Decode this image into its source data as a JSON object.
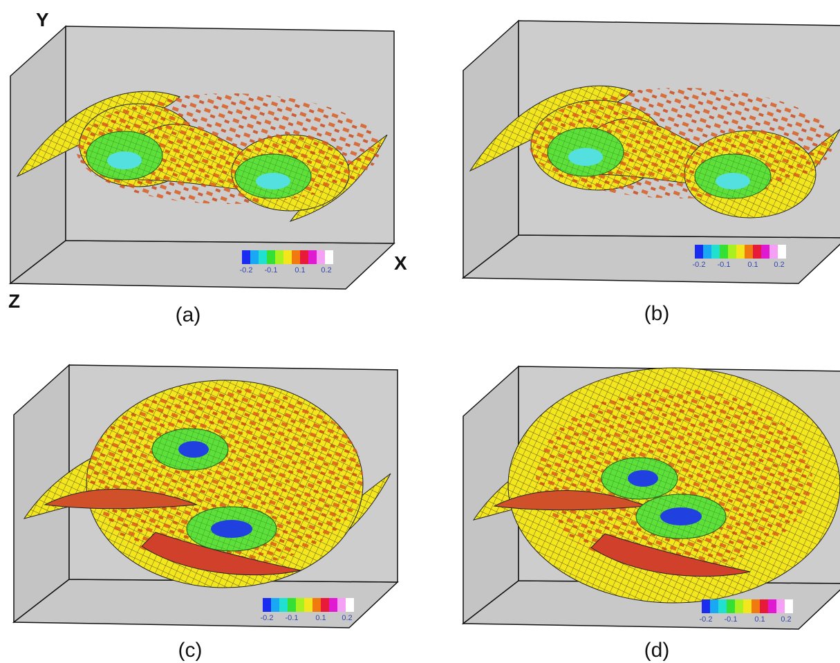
{
  "axes": {
    "y": "Y",
    "x": "X",
    "z": "Z"
  },
  "panels": [
    {
      "label": "(a)",
      "colorbar": [
        "-0.2",
        "-0.1",
        "0.1",
        "0.2"
      ]
    },
    {
      "label": "(b)",
      "colorbar": [
        "-0.2",
        "-0.1",
        "0.1",
        "0.2"
      ]
    },
    {
      "label": "(c)",
      "colorbar": [
        "-0.2",
        "-0.1",
        "0.1",
        "0.2"
      ]
    },
    {
      "label": "(d)",
      "colorbar": [
        "-0.2",
        "-0.1",
        "0.1",
        "0.2"
      ]
    }
  ]
}
